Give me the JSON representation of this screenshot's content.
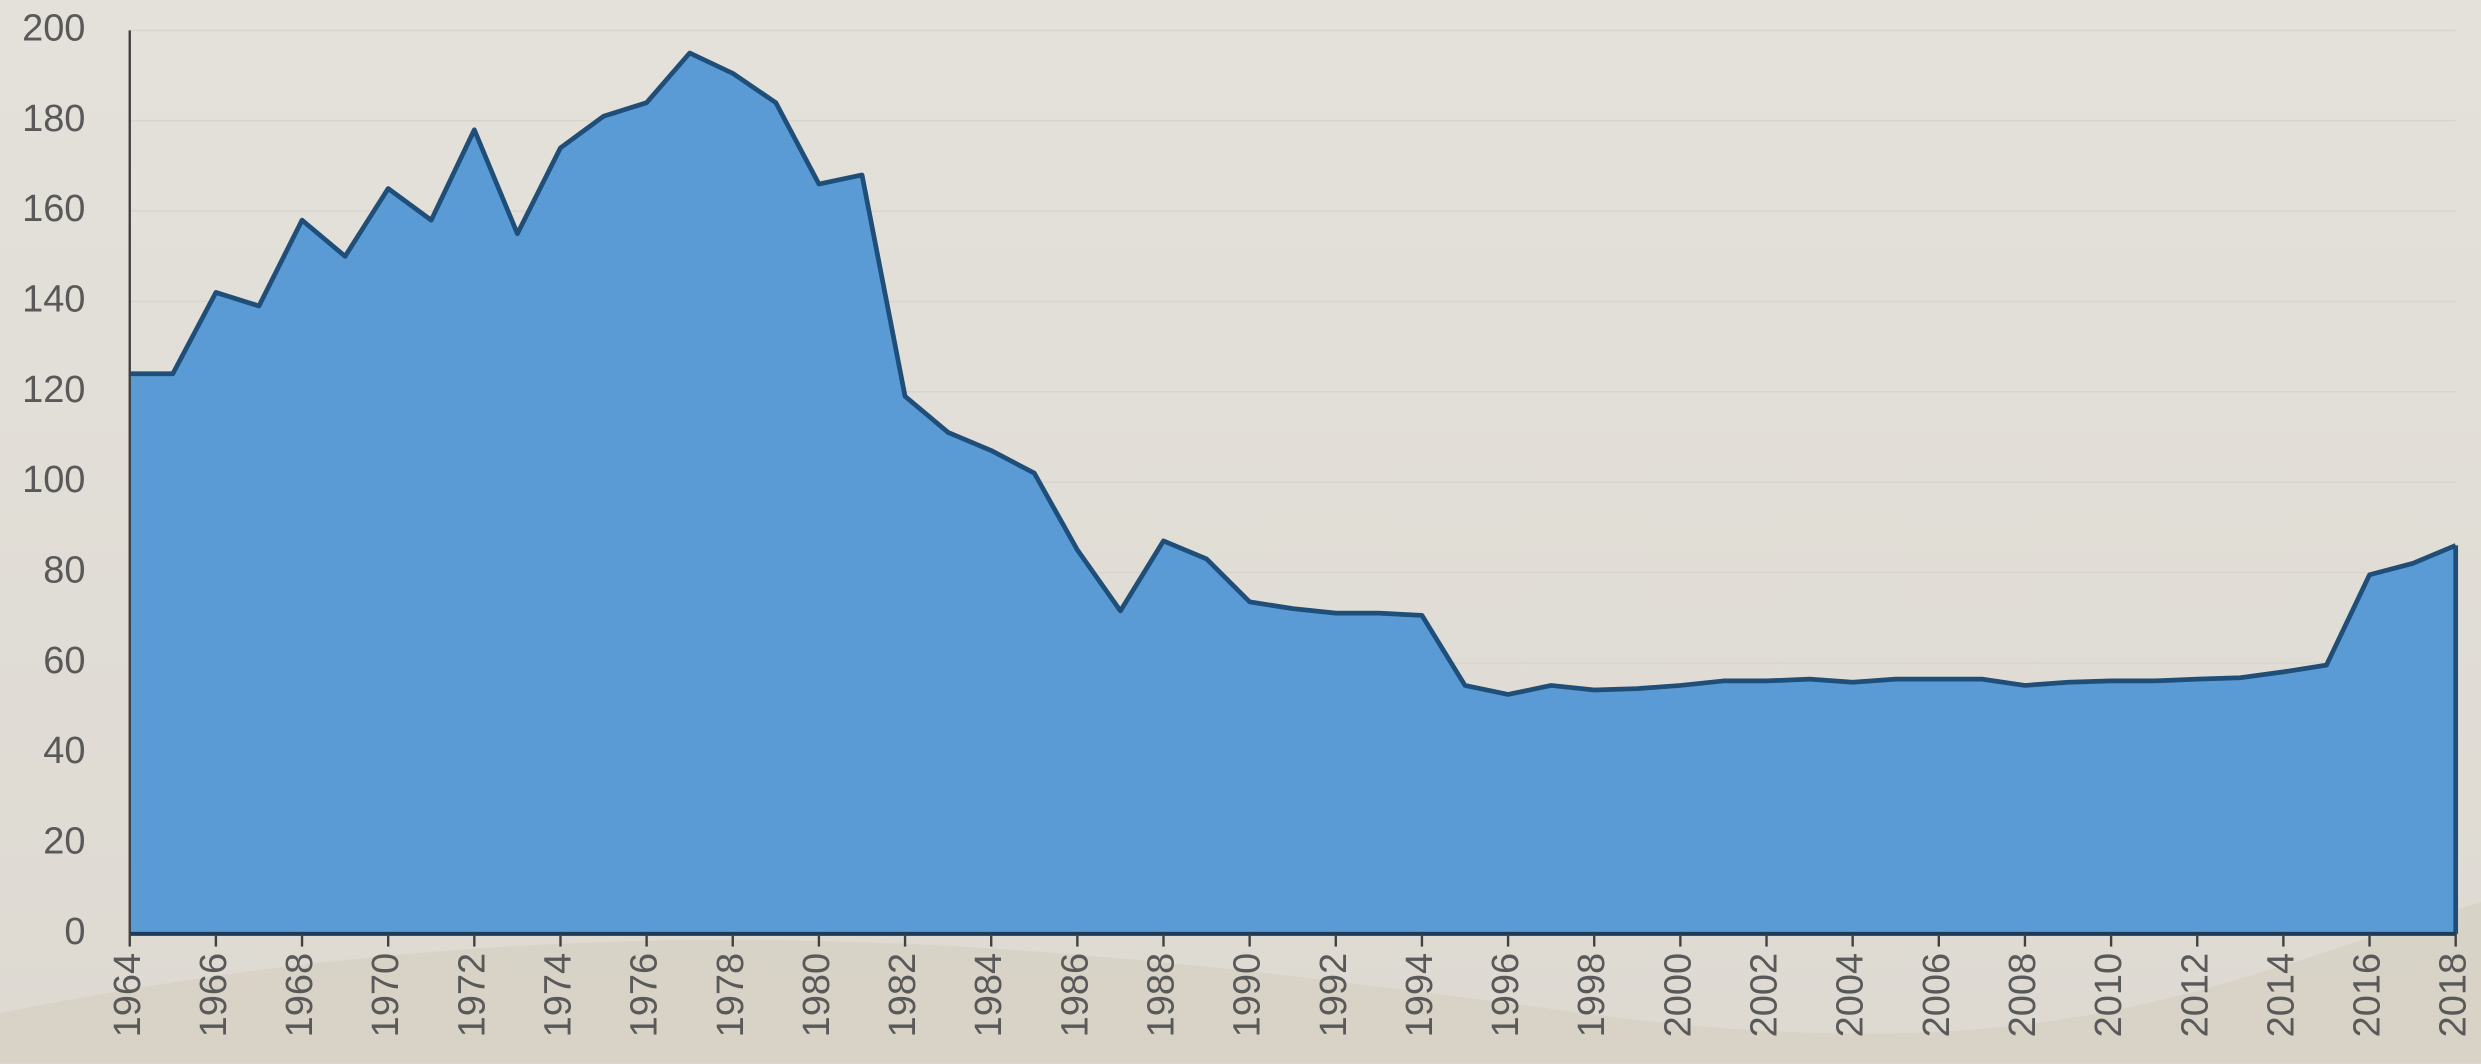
{
  "chart_data": {
    "type": "area",
    "x": [
      1964,
      1965,
      1966,
      1967,
      1968,
      1969,
      1970,
      1971,
      1972,
      1973,
      1974,
      1975,
      1976,
      1977,
      1978,
      1979,
      1980,
      1981,
      1982,
      1983,
      1984,
      1985,
      1986,
      1987,
      1988,
      1989,
      1990,
      1991,
      1992,
      1993,
      1994,
      1995,
      1996,
      1997,
      1998,
      1999,
      2000,
      2001,
      2002,
      2003,
      2004,
      2005,
      2006,
      2007,
      2008,
      2009,
      2010,
      2011,
      2012,
      2013,
      2014,
      2015,
      2016,
      2017,
      2018
    ],
    "values": [
      124,
      124,
      142,
      139,
      158,
      150,
      165,
      158,
      178,
      155,
      174,
      181,
      184,
      195,
      190.5,
      184,
      166,
      168,
      119,
      111,
      107,
      102,
      85,
      71.5,
      87,
      83,
      73.5,
      72,
      71,
      71,
      70.5,
      55,
      53,
      55,
      54,
      54.3,
      55,
      56,
      56,
      56.4,
      55.7,
      56.4,
      56.4,
      56.4,
      55,
      55.7,
      56,
      56,
      56.4,
      56.7,
      58,
      59.5,
      79.5,
      82,
      86
    ],
    "color": "#5b9bd5",
    "line_color": "#1f4e79",
    "xlim": [
      1964,
      2018
    ],
    "xticks": [
      1964,
      1966,
      1968,
      1970,
      1972,
      1974,
      1976,
      1978,
      1980,
      1982,
      1984,
      1986,
      1988,
      1990,
      1992,
      1994,
      1996,
      1998,
      2000,
      2002,
      2004,
      2006,
      2008,
      2010,
      2012,
      2014,
      2016,
      2018
    ],
    "ylim": [
      0,
      200
    ],
    "yticks": [
      0,
      20,
      40,
      60,
      80,
      100,
      120,
      140,
      160,
      180,
      200
    ],
    "grid": true
  }
}
